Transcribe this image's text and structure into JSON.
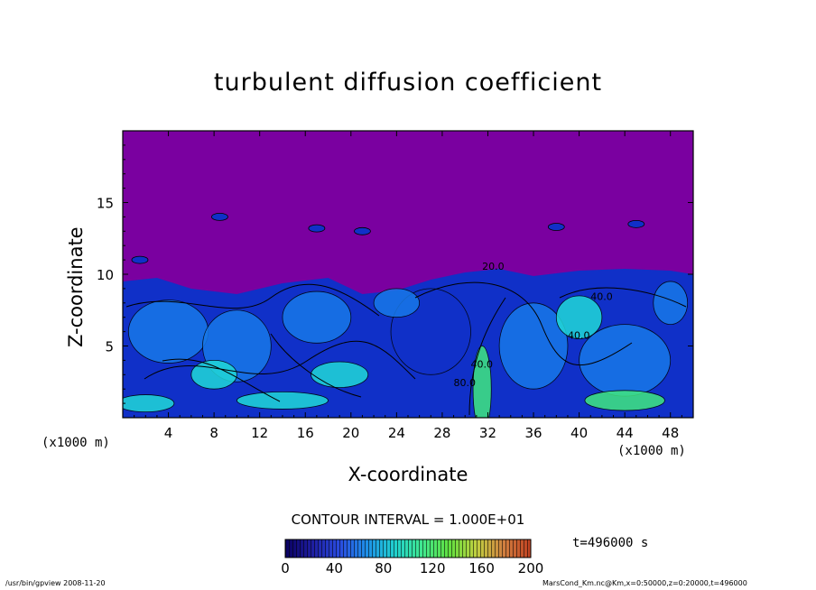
{
  "chart_data": {
    "type": "heatmap",
    "title": "turbulent diffusion coefficient",
    "xlabel": "X-coordinate",
    "ylabel": "Z-coordinate",
    "x_unit_label": "(x1000 m)",
    "xlim": [
      0,
      50
    ],
    "ylim": [
      0,
      20
    ],
    "x_ticks": [
      "4",
      "8",
      "12",
      "16",
      "20",
      "24",
      "28",
      "32",
      "36",
      "40",
      "44",
      "48"
    ],
    "x_tick_values": [
      4,
      8,
      12,
      16,
      20,
      24,
      28,
      32,
      36,
      40,
      44,
      48
    ],
    "y_ticks": [
      "5",
      "10",
      "15"
    ],
    "y_tick_values": [
      5,
      10,
      15
    ],
    "contour_interval": "CONTOUR INTERVAL = 1.000E+01",
    "contour_labels": [
      "40.0",
      "40.0",
      "40.0",
      "20.0",
      "80.0"
    ],
    "colorbar": {
      "min": 0,
      "max": 200,
      "ticks": [
        "0",
        "40",
        "80",
        "120",
        "160",
        "200"
      ],
      "colors": [
        "#0a0060",
        "#1e1ea0",
        "#2a4ce0",
        "#1e90e8",
        "#20d0d0",
        "#40e890",
        "#60e040",
        "#c0d040",
        "#d08040",
        "#c04020"
      ]
    },
    "time_label": "t=496000  s",
    "boundary_layer_top_km": 10,
    "background_color": "#7a00a0",
    "colors": {
      "upper": "#7a00a0",
      "low": "#1030c8",
      "mid": "#1878e8",
      "high": "#20d8d8",
      "peak": "#40e880"
    }
  },
  "footer": {
    "left": "/usr/bin/gpview   2008-11-20",
    "right": "MarsCond_Km.nc@Km,x=0:50000,z=0:20000,t=496000"
  }
}
